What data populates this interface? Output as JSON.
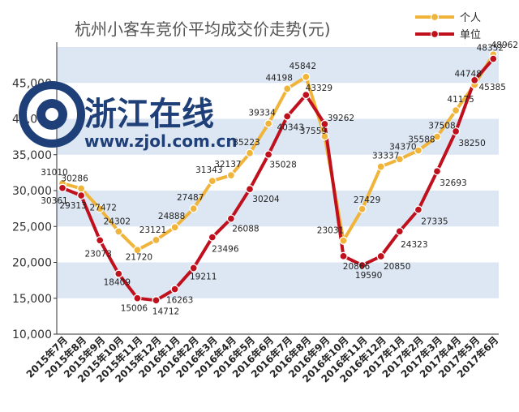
{
  "watermark": {
    "logo_text": "浙江在线",
    "url_text": "www.zjol.com.cn"
  },
  "colors": {
    "personal": "#f0b43a",
    "company": "#c0101e",
    "band": "#dde7f3",
    "title": "#555555"
  },
  "chart_data": {
    "type": "line",
    "title": "杭州小客车竞价平均成交价走势(元)",
    "xlabel": "",
    "ylabel": "",
    "ylim": [
      10000,
      50000
    ],
    "yticks": [
      10000,
      15000,
      20000,
      25000,
      30000,
      35000,
      40000,
      45000
    ],
    "ytick_labels": [
      "10,000",
      "15,000",
      "20,000",
      "25,000",
      "30,000",
      "35,000",
      "40,000",
      "45,000"
    ],
    "categories": [
      "2015年7月",
      "2015年8月",
      "2015年9月",
      "2015年10月",
      "2015年11月",
      "2015年12月",
      "2016年1月",
      "2016年2月",
      "2016年3月",
      "2016年4月",
      "2016年5月",
      "2016年6月",
      "2016年7月",
      "2016年8月",
      "2016年9月",
      "2016年10月",
      "2016年11月",
      "2016年12月",
      "2017年1月",
      "2017年2月",
      "2017年3月",
      "2017年4月",
      "2017年5月",
      "2017年6月"
    ],
    "legend_position": "top-right",
    "series": [
      {
        "name": "个人",
        "color": "#f0b43a",
        "values": [
          31010,
          30286,
          27472,
          24302,
          21720,
          23121,
          24888,
          27487,
          31343,
          32137,
          35223,
          39334,
          44198,
          45842,
          37559,
          23031,
          27429,
          33337,
          34370,
          35588,
          37508,
          41175,
          44748,
          48962
        ]
      },
      {
        "name": "单位",
        "color": "#c0101e",
        "values": [
          30361,
          29313,
          23073,
          18409,
          15006,
          14712,
          16263,
          19211,
          23496,
          26088,
          30204,
          35028,
          40343,
          43329,
          39262,
          20866,
          19590,
          20850,
          24323,
          27335,
          32693,
          38250,
          45385,
          48352
        ]
      }
    ],
    "data_labels": [
      {
        "text": "31010",
        "series": 0,
        "index": 0
      },
      {
        "text": "30286",
        "series": 0,
        "index": 1
      },
      {
        "text": "27472",
        "series": 0,
        "index": 2
      },
      {
        "text": "24302",
        "series": 0,
        "index": 3
      },
      {
        "text": "21720",
        "series": 0,
        "index": 4
      },
      {
        "text": "23121",
        "series": 0,
        "index": 5
      },
      {
        "text": "24888",
        "series": 0,
        "index": 6
      },
      {
        "text": "27487",
        "series": 0,
        "index": 7
      },
      {
        "text": "31343",
        "series": 0,
        "index": 8
      },
      {
        "text": "32137",
        "series": 0,
        "index": 9
      },
      {
        "text": "35223",
        "series": 0,
        "index": 10
      },
      {
        "text": "39334",
        "series": 0,
        "index": 11
      },
      {
        "text": "44198",
        "series": 0,
        "index": 12
      },
      {
        "text": "45842",
        "series": 0,
        "index": 13
      },
      {
        "text": "37559",
        "series": 0,
        "index": 14
      },
      {
        "text": "23031",
        "series": 0,
        "index": 15
      },
      {
        "text": "27429",
        "series": 0,
        "index": 16
      },
      {
        "text": "33337",
        "series": 0,
        "index": 17
      },
      {
        "text": "34370",
        "series": 0,
        "index": 18
      },
      {
        "text": "35588",
        "series": 0,
        "index": 19
      },
      {
        "text": "37508",
        "series": 0,
        "index": 20
      },
      {
        "text": "41175",
        "series": 0,
        "index": 21
      },
      {
        "text": "44748",
        "series": 0,
        "index": 22
      },
      {
        "text": "48962",
        "series": 0,
        "index": 23
      },
      {
        "text": "30361",
        "series": 1,
        "index": 0
      },
      {
        "text": "29313",
        "series": 1,
        "index": 1
      },
      {
        "text": "23073",
        "series": 1,
        "index": 2
      },
      {
        "text": "18409",
        "series": 1,
        "index": 3
      },
      {
        "text": "15006",
        "series": 1,
        "index": 4
      },
      {
        "text": "14712",
        "series": 1,
        "index": 5
      },
      {
        "text": "16263",
        "series": 1,
        "index": 6
      },
      {
        "text": "19211",
        "series": 1,
        "index": 7
      },
      {
        "text": "23496",
        "series": 1,
        "index": 8
      },
      {
        "text": "26088",
        "series": 1,
        "index": 9
      },
      {
        "text": "30204",
        "series": 1,
        "index": 10
      },
      {
        "text": "35028",
        "series": 1,
        "index": 11
      },
      {
        "text": "40343",
        "series": 1,
        "index": 12
      },
      {
        "text": "43329",
        "series": 1,
        "index": 13
      },
      {
        "text": "39262",
        "series": 1,
        "index": 14
      },
      {
        "text": "20866",
        "series": 1,
        "index": 15
      },
      {
        "text": "19590",
        "series": 1,
        "index": 16
      },
      {
        "text": "20850",
        "series": 1,
        "index": 17
      },
      {
        "text": "24323",
        "series": 1,
        "index": 18
      },
      {
        "text": "27335",
        "series": 1,
        "index": 19
      },
      {
        "text": "32693",
        "series": 1,
        "index": 20
      },
      {
        "text": "38250",
        "series": 1,
        "index": 21
      },
      {
        "text": "45385",
        "series": 1,
        "index": 22
      },
      {
        "text": "48352",
        "series": 1,
        "index": 23
      }
    ]
  }
}
